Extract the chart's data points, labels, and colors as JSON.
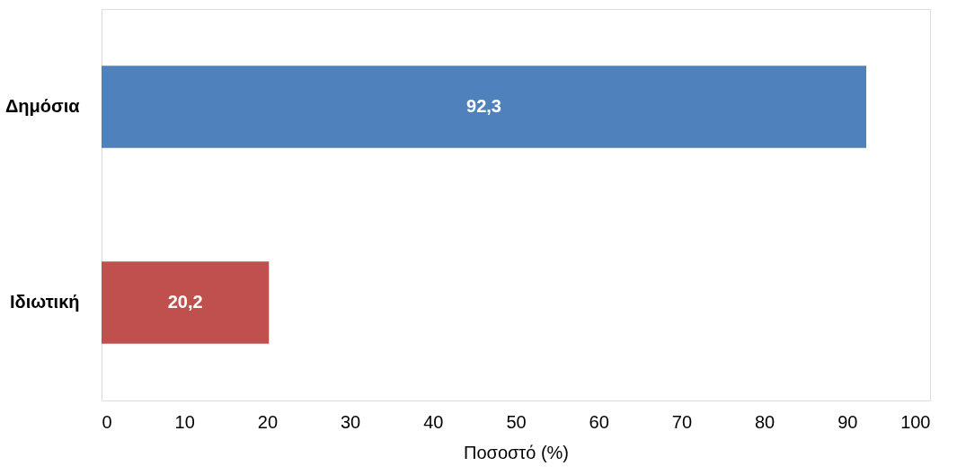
{
  "chart_data": {
    "type": "bar",
    "orientation": "horizontal",
    "categories": [
      "Δημόσια",
      "Ιδιωτική"
    ],
    "values": [
      92.3,
      20.2
    ],
    "colors": [
      "#4f81bd",
      "#c0504d"
    ],
    "value_labels": [
      "92,3",
      "20,2"
    ],
    "xlim": [
      0,
      100
    ],
    "xticks": [
      0,
      10,
      20,
      30,
      40,
      50,
      60,
      70,
      80,
      90,
      100
    ],
    "xlabel": "Ποσοστό (%)",
    "grid": false
  }
}
